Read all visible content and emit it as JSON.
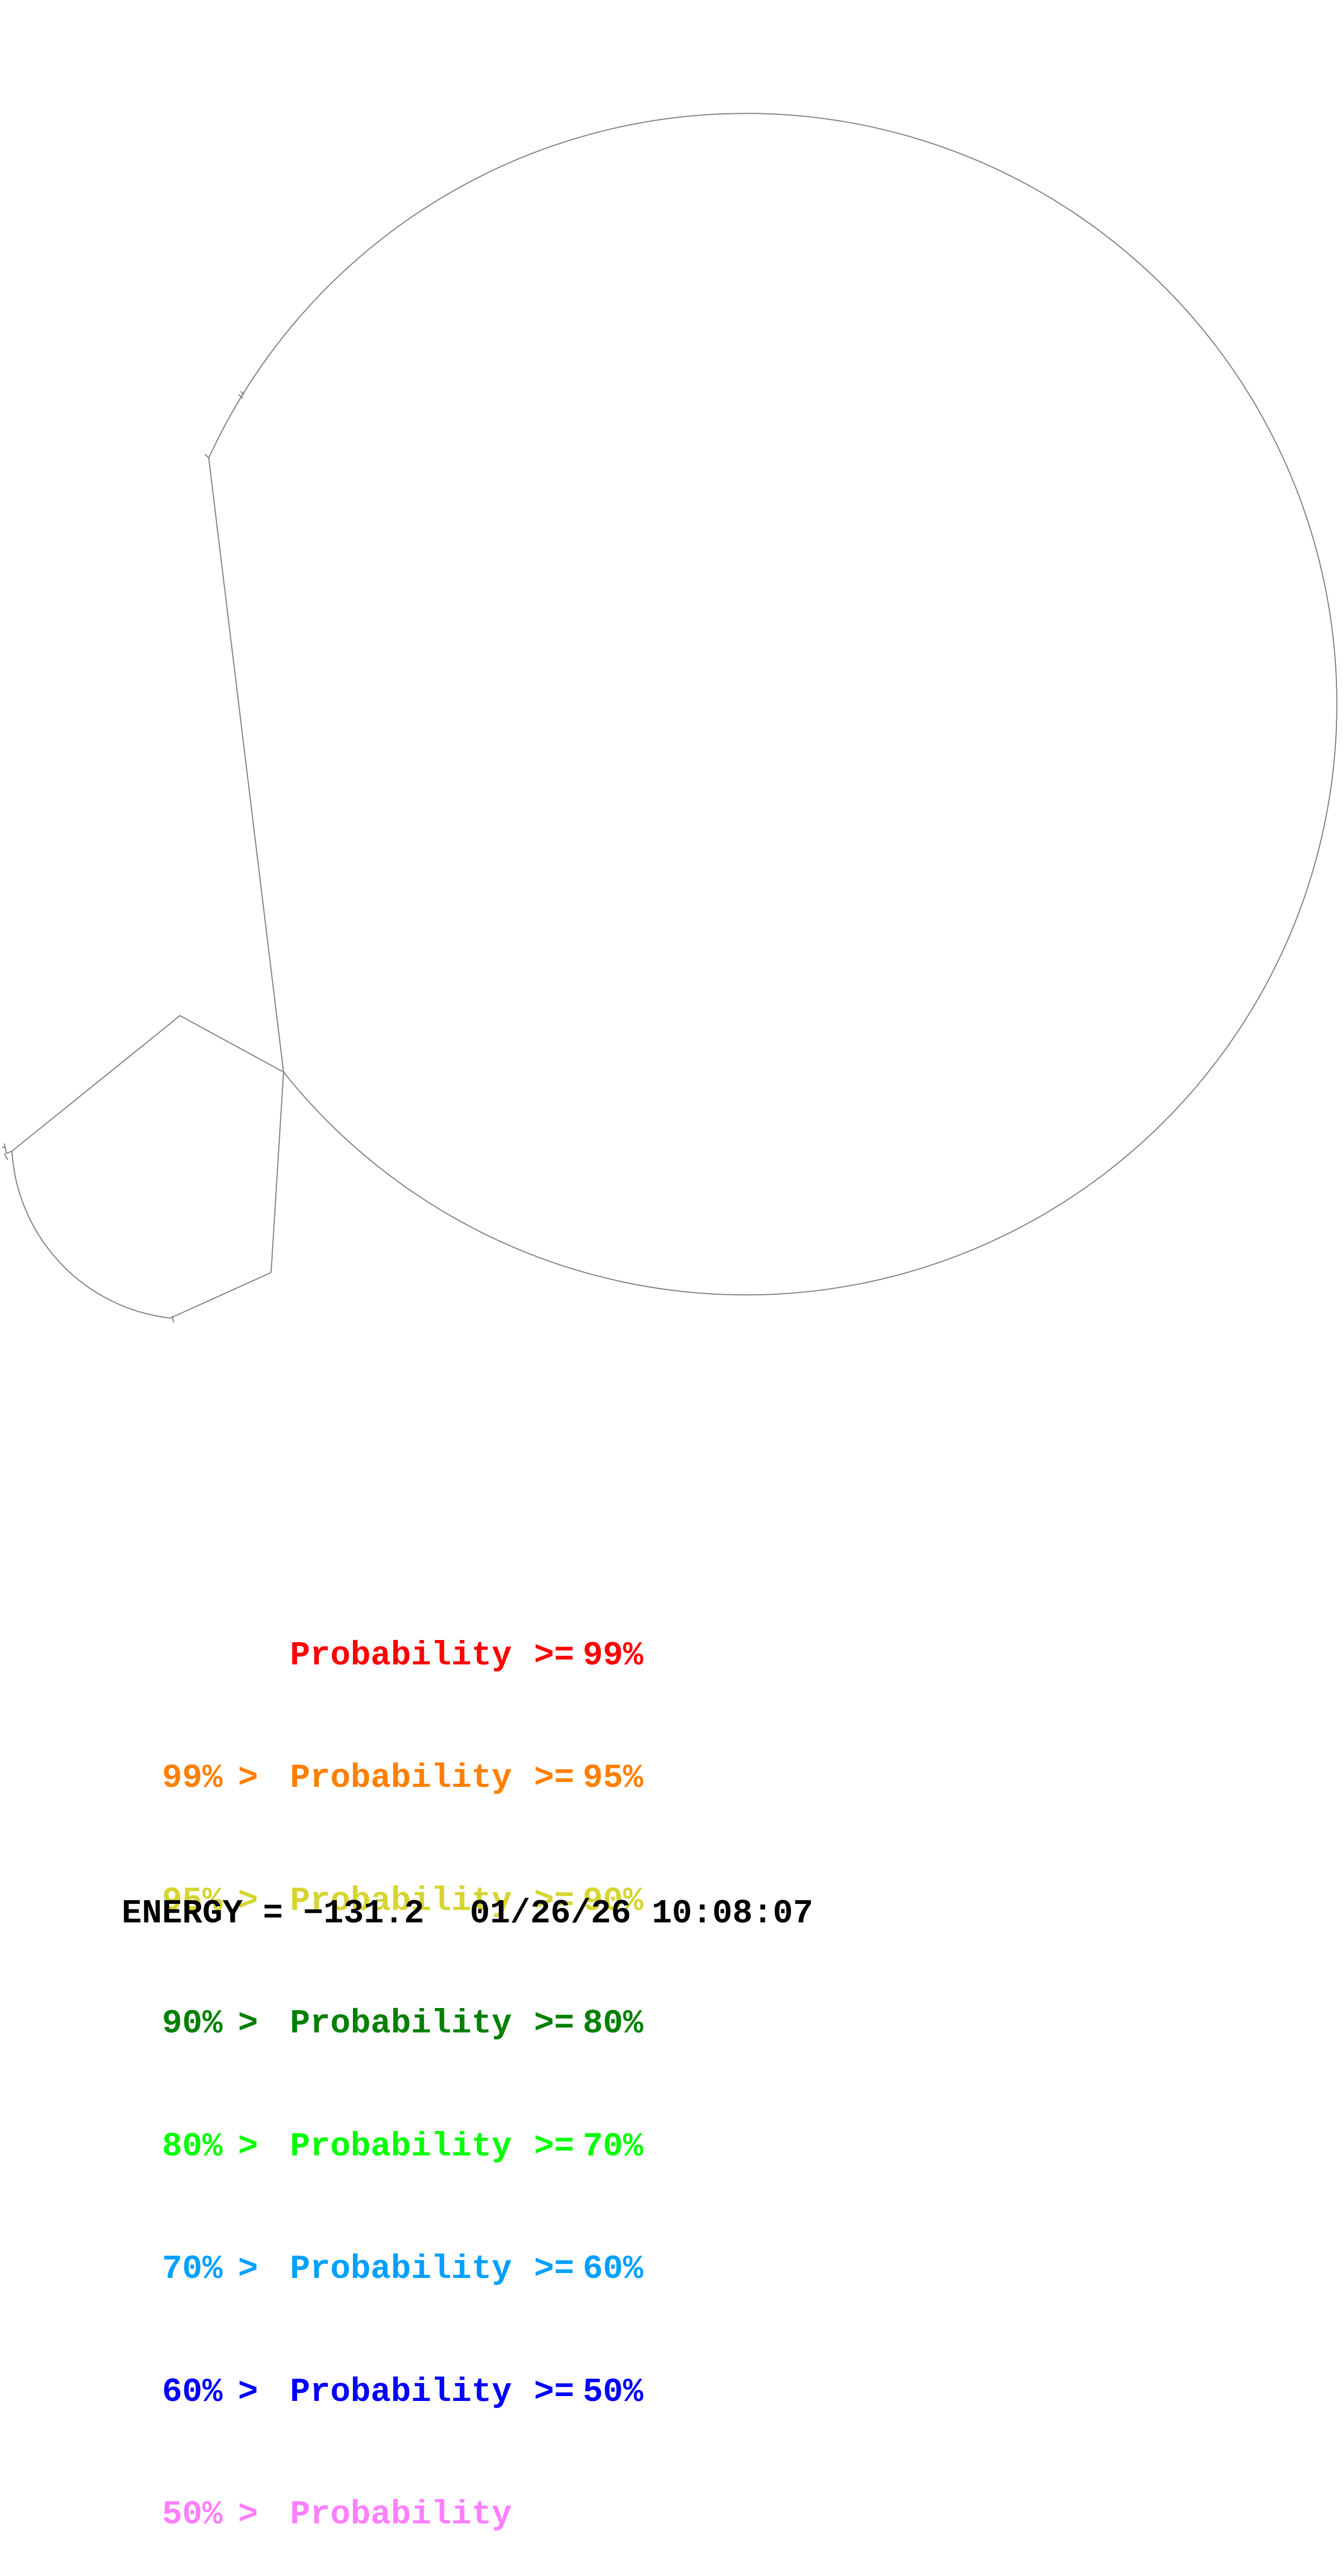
{
  "legend": {
    "rows": [
      {
        "low": "",
        "gt": "",
        "word": "Probability",
        "ge": ">=",
        "high": "99%",
        "color": "#ff0000"
      },
      {
        "low": "99%",
        "gt": ">",
        "word": "Probability",
        "ge": ">=",
        "high": "95%",
        "color": "#ff8000"
      },
      {
        "low": "95%",
        "gt": ">",
        "word": "Probability",
        "ge": ">=",
        "high": "90%",
        "color": "#d5d532"
      },
      {
        "low": "90%",
        "gt": ">",
        "word": "Probability",
        "ge": ">=",
        "high": "80%",
        "color": "#008000"
      },
      {
        "low": "80%",
        "gt": ">",
        "word": "Probability",
        "ge": ">=",
        "high": "70%",
        "color": "#00ff00"
      },
      {
        "low": "70%",
        "gt": ">",
        "word": "Probability",
        "ge": ">=",
        "high": "60%",
        "color": "#00a0ff"
      },
      {
        "low": "60%",
        "gt": ">",
        "word": "Probability",
        "ge": ">=",
        "high": "50%",
        "color": "#0000ff"
      },
      {
        "low": "50%",
        "gt": ">",
        "word": "Probability",
        "ge": "",
        "high": "",
        "color": "#ff80ff"
      }
    ]
  },
  "footer": {
    "energy_label": "ENERGY = ",
    "energy_value": "−131.2",
    "date": "01/26/26",
    "time": "10:08:07"
  },
  "structure": {
    "backbone_color": "#808080"
  }
}
